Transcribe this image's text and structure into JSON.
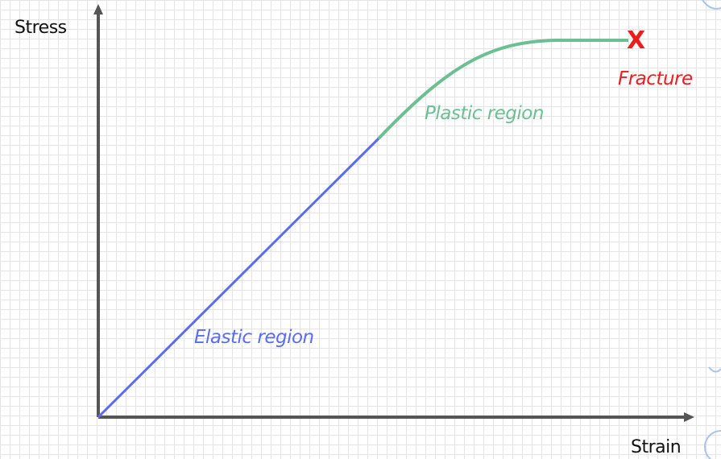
{
  "diagram": {
    "y_axis_label": "Stress",
    "x_axis_label": "Strain",
    "elastic_label": "Elastic region",
    "plastic_label": "Plastic region",
    "fracture_label": "Fracture",
    "fracture_mark": "X",
    "colors": {
      "axis": "#555555",
      "elastic": "#5b6cf0",
      "plastic": "#6cbf93",
      "fracture": "#ee1c1c",
      "grid": "#e4e4e4"
    }
  }
}
